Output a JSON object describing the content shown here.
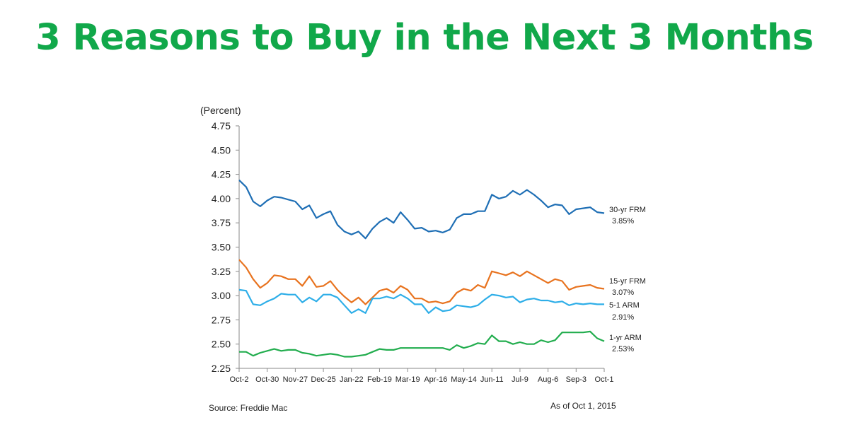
{
  "headline": "3 Reasons to Buy in the Next 3 Months",
  "chart_data": {
    "type": "line",
    "ylabel": "(Percent)",
    "ylim": [
      2.25,
      4.75
    ],
    "yticks": [
      "4.75",
      "4.50",
      "4.25",
      "4.00",
      "3.75",
      "3.50",
      "3.25",
      "3.00",
      "2.75",
      "2.50",
      "2.25"
    ],
    "x_tick_labels": [
      "Oct-2",
      "Oct-30",
      "Nov-27",
      "Dec-25",
      "Jan-22",
      "Feb-19",
      "Mar-19",
      "Apr-16",
      "May-14",
      "Jun-11",
      "Jul-9",
      "Aug-6",
      "Sep-3",
      "Oct-1"
    ],
    "grid": false,
    "legend": "inline labels at right",
    "source": "Source: Freddie Mac",
    "as_of": "As of Oct 1, 2015",
    "series": [
      {
        "name": "30-yr FRM",
        "value_label": "3.85%",
        "color": "#1f6fb5",
        "values": [
          4.19,
          4.12,
          3.97,
          3.92,
          3.98,
          4.02,
          4.01,
          3.99,
          3.97,
          3.89,
          3.93,
          3.8,
          3.84,
          3.87,
          3.73,
          3.66,
          3.63,
          3.66,
          3.59,
          3.69,
          3.76,
          3.8,
          3.75,
          3.86,
          3.78,
          3.69,
          3.7,
          3.66,
          3.67,
          3.65,
          3.68,
          3.8,
          3.84,
          3.84,
          3.87,
          3.87,
          4.04,
          4.0,
          4.02,
          4.08,
          4.04,
          4.09,
          4.04,
          3.98,
          3.91,
          3.94,
          3.93,
          3.84,
          3.89,
          3.9,
          3.91,
          3.86,
          3.85
        ]
      },
      {
        "name": "15-yr FRM",
        "value_label": "3.07%",
        "color": "#e8731f",
        "values": [
          3.37,
          3.29,
          3.17,
          3.08,
          3.13,
          3.21,
          3.2,
          3.17,
          3.17,
          3.1,
          3.2,
          3.09,
          3.1,
          3.15,
          3.06,
          2.99,
          2.93,
          2.98,
          2.91,
          2.98,
          3.05,
          3.07,
          3.03,
          3.1,
          3.06,
          2.97,
          2.97,
          2.93,
          2.94,
          2.92,
          2.94,
          3.03,
          3.07,
          3.05,
          3.11,
          3.08,
          3.25,
          3.23,
          3.21,
          3.24,
          3.2,
          3.25,
          3.21,
          3.17,
          3.13,
          3.17,
          3.15,
          3.06,
          3.09,
          3.1,
          3.11,
          3.08,
          3.07
        ]
      },
      {
        "name": "5-1 ARM",
        "value_label": "2.91%",
        "color": "#2eaee8",
        "values": [
          3.06,
          3.05,
          2.91,
          2.9,
          2.94,
          2.97,
          3.02,
          3.01,
          3.01,
          2.93,
          2.98,
          2.94,
          3.01,
          3.01,
          2.98,
          2.9,
          2.82,
          2.86,
          2.82,
          2.97,
          2.97,
          2.99,
          2.97,
          3.01,
          2.97,
          2.91,
          2.91,
          2.82,
          2.88,
          2.84,
          2.85,
          2.9,
          2.89,
          2.88,
          2.9,
          2.96,
          3.01,
          3.0,
          2.98,
          2.99,
          2.93,
          2.96,
          2.97,
          2.95,
          2.95,
          2.93,
          2.94,
          2.9,
          2.92,
          2.91,
          2.92,
          2.91,
          2.91
        ]
      },
      {
        "name": "1-yr ARM",
        "value_label": "2.53%",
        "color": "#22ad4e",
        "values": [
          2.42,
          2.42,
          2.38,
          2.41,
          2.43,
          2.45,
          2.43,
          2.44,
          2.44,
          2.41,
          2.4,
          2.38,
          2.39,
          2.4,
          2.39,
          2.37,
          2.37,
          2.38,
          2.39,
          2.42,
          2.45,
          2.44,
          2.44,
          2.46,
          2.46,
          2.46,
          2.46,
          2.46,
          2.46,
          2.46,
          2.44,
          2.49,
          2.46,
          2.48,
          2.51,
          2.5,
          2.59,
          2.53,
          2.53,
          2.5,
          2.52,
          2.5,
          2.5,
          2.54,
          2.52,
          2.54,
          2.62,
          2.62,
          2.62,
          2.62,
          2.63,
          2.56,
          2.53
        ]
      }
    ]
  }
}
